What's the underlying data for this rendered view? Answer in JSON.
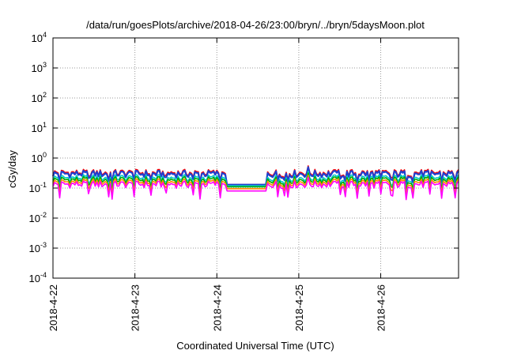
{
  "chart_data": {
    "type": "line",
    "title": "/data/run/goesPlots/archive/2018-04-26/23:00/bryn/../bryn/5daysMoon.plot",
    "xlabel": "Coordinated Universal Time (UTC)",
    "ylabel": "cGy/day",
    "yscale": "log",
    "ylim": [
      0.0001,
      10000
    ],
    "xlim": [
      0,
      4.95
    ],
    "grid": true,
    "x_ticks": [
      {
        "value": 0,
        "label": "2018-4-22"
      },
      {
        "value": 1,
        "label": "2018-4-23"
      },
      {
        "value": 2,
        "label": "2018-4-24"
      },
      {
        "value": 3,
        "label": "2018-4-25"
      },
      {
        "value": 4,
        "label": "2018-4-26"
      }
    ],
    "y_ticks": [
      {
        "value": 0.0001,
        "base": "10",
        "exp": "-4"
      },
      {
        "value": 0.001,
        "base": "10",
        "exp": "-3"
      },
      {
        "value": 0.01,
        "base": "10",
        "exp": "-2"
      },
      {
        "value": 0.1,
        "base": "10",
        "exp": "-1"
      },
      {
        "value": 1,
        "base": "10",
        "exp": "0"
      },
      {
        "value": 10,
        "base": "10",
        "exp": "1"
      },
      {
        "value": 100,
        "base": "10",
        "exp": "2"
      },
      {
        "value": 1000,
        "base": "10",
        "exp": "3"
      },
      {
        "value": 10000,
        "base": "10",
        "exp": "4"
      }
    ],
    "gap": [
      2.12,
      2.6
    ],
    "series": [
      {
        "color": "#ff0000",
        "base": 0.33,
        "gap_value": 0.13,
        "dip_depth": 0.35
      },
      {
        "color": "#2040d0",
        "base": 0.3,
        "gap_value": 0.13,
        "dip_depth": 0.4
      },
      {
        "color": "#00c8c8",
        "base": 0.22,
        "gap_value": 0.12,
        "dip_depth": 0.45
      },
      {
        "color": "#00aa00",
        "base": 0.19,
        "gap_value": 0.11,
        "dip_depth": 0.45
      },
      {
        "color": "#ff8800",
        "base": 0.16,
        "gap_value": 0.095,
        "dip_depth": 0.5
      },
      {
        "color": "#ff00ff",
        "base": 0.135,
        "gap_value": 0.08,
        "dip_depth": 0.6
      }
    ]
  }
}
